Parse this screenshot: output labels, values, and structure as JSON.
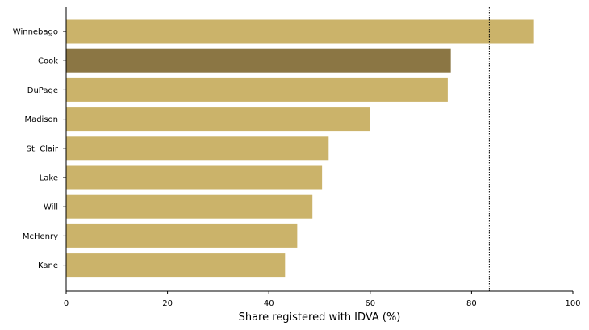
{
  "chart_data": {
    "type": "bar",
    "orientation": "horizontal",
    "categories": [
      "Winnebago",
      "Cook",
      "DuPage",
      "Madison",
      "St. Clair",
      "Lake",
      "Will",
      "McHenry",
      "Kane"
    ],
    "values": [
      92.3,
      75.9,
      75.3,
      59.9,
      51.8,
      50.5,
      48.6,
      45.6,
      43.2
    ],
    "highlight": "Cook",
    "xlabel": "Share registered with IDVA (%)",
    "ylabel": "",
    "xlim": [
      0,
      100
    ],
    "xticks": [
      0,
      20,
      40,
      60,
      80,
      100
    ],
    "reference_line": 83.5,
    "grid": false,
    "colors": {
      "bar": "#cbb36a",
      "highlight": "#8b7644",
      "reference_line": "#000000"
    }
  }
}
